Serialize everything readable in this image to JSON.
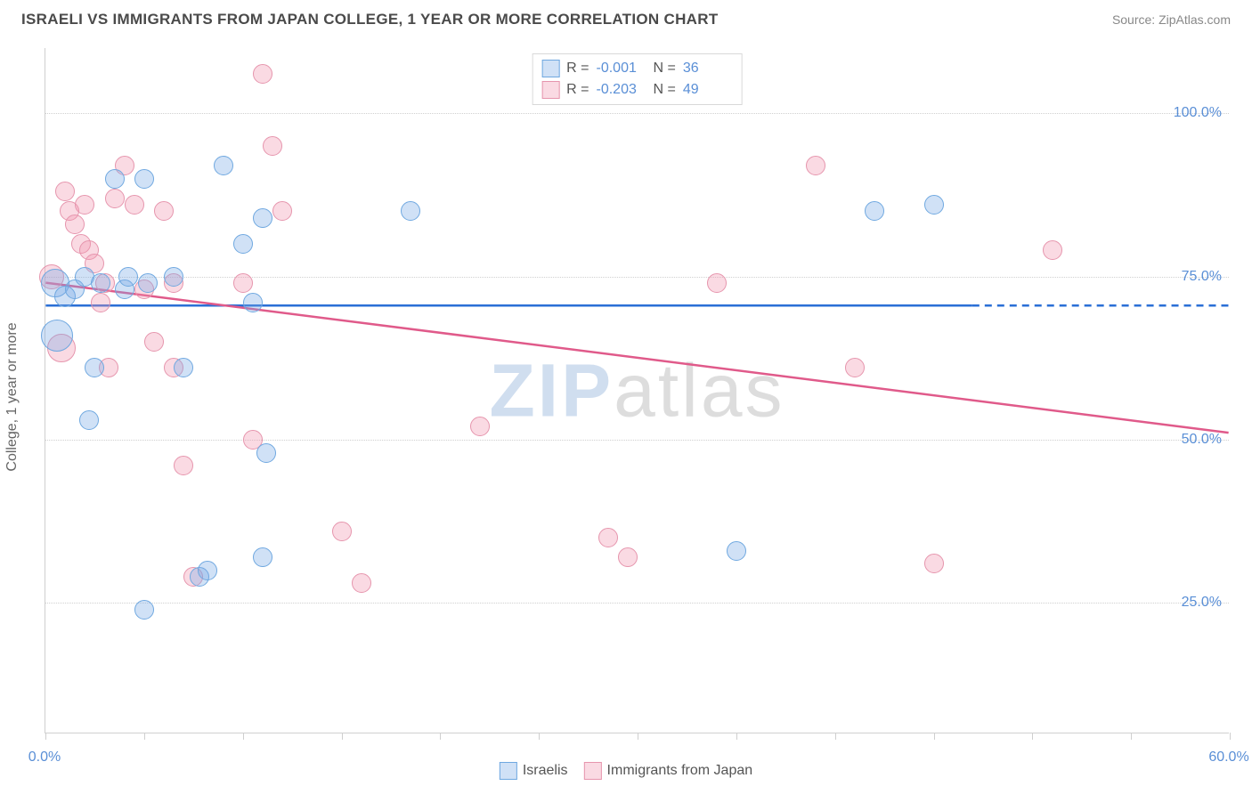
{
  "header": {
    "title": "ISRAELI VS IMMIGRANTS FROM JAPAN COLLEGE, 1 YEAR OR MORE CORRELATION CHART",
    "source": "Source: ZipAtlas.com"
  },
  "chart": {
    "type": "scatter",
    "y_axis_label": "College, 1 year or more",
    "background_color": "#ffffff",
    "grid_color": "#d0d0d0",
    "xlim": [
      0,
      60
    ],
    "ylim": [
      5,
      110
    ],
    "y_ticks": [
      {
        "value": 25,
        "label": "25.0%"
      },
      {
        "value": 50,
        "label": "50.0%"
      },
      {
        "value": 75,
        "label": "75.0%"
      },
      {
        "value": 100,
        "label": "100.0%"
      }
    ],
    "x_ticks": [
      {
        "value": 0,
        "label": "0.0%"
      },
      {
        "value": 5,
        "label": ""
      },
      {
        "value": 10,
        "label": ""
      },
      {
        "value": 15,
        "label": ""
      },
      {
        "value": 20,
        "label": ""
      },
      {
        "value": 25,
        "label": ""
      },
      {
        "value": 30,
        "label": ""
      },
      {
        "value": 35,
        "label": ""
      },
      {
        "value": 40,
        "label": ""
      },
      {
        "value": 45,
        "label": ""
      },
      {
        "value": 50,
        "label": ""
      },
      {
        "value": 55,
        "label": ""
      },
      {
        "value": 60,
        "label": "60.0%"
      }
    ],
    "series": [
      {
        "name": "Israelis",
        "fill_color": "rgba(120,170,230,0.35)",
        "stroke_color": "#6fa8e0",
        "line_color": "#2a6fd6",
        "marker_radius": 11,
        "trend": {
          "x1": 0,
          "y1": 70.5,
          "x2": 47,
          "y2": 70.5,
          "dash_from_x": 47,
          "dash_to_x": 60
        },
        "legend": {
          "R_label": "R =",
          "R_value": "-0.001",
          "N_label": "N =",
          "N_value": "36"
        },
        "points": [
          {
            "x": 0.5,
            "y": 74,
            "r": 16
          },
          {
            "x": 0.6,
            "y": 66,
            "r": 18
          },
          {
            "x": 1.0,
            "y": 72,
            "r": 12
          },
          {
            "x": 1.5,
            "y": 73,
            "r": 11
          },
          {
            "x": 2.0,
            "y": 75,
            "r": 11
          },
          {
            "x": 2.2,
            "y": 53,
            "r": 11
          },
          {
            "x": 2.5,
            "y": 61,
            "r": 11
          },
          {
            "x": 2.8,
            "y": 74,
            "r": 11
          },
          {
            "x": 3.5,
            "y": 90,
            "r": 11
          },
          {
            "x": 4.0,
            "y": 73,
            "r": 11
          },
          {
            "x": 4.2,
            "y": 75,
            "r": 11
          },
          {
            "x": 5.0,
            "y": 90,
            "r": 11
          },
          {
            "x": 5.2,
            "y": 74,
            "r": 11
          },
          {
            "x": 5.0,
            "y": 24,
            "r": 11
          },
          {
            "x": 6.5,
            "y": 75,
            "r": 11
          },
          {
            "x": 7.0,
            "y": 61,
            "r": 11
          },
          {
            "x": 7.8,
            "y": 29,
            "r": 11
          },
          {
            "x": 8.2,
            "y": 30,
            "r": 11
          },
          {
            "x": 9.0,
            "y": 92,
            "r": 11
          },
          {
            "x": 10.0,
            "y": 80,
            "r": 11
          },
          {
            "x": 10.5,
            "y": 71,
            "r": 11
          },
          {
            "x": 11.0,
            "y": 32,
            "r": 11
          },
          {
            "x": 11.0,
            "y": 84,
            "r": 11
          },
          {
            "x": 11.2,
            "y": 48,
            "r": 11
          },
          {
            "x": 18.5,
            "y": 85,
            "r": 11
          },
          {
            "x": 35.0,
            "y": 33,
            "r": 11
          },
          {
            "x": 42.0,
            "y": 85,
            "r": 11
          },
          {
            "x": 45.0,
            "y": 86,
            "r": 11
          }
        ]
      },
      {
        "name": "Immigrants from Japan",
        "fill_color": "rgba(240,150,175,0.35)",
        "stroke_color": "#e695ad",
        "line_color": "#e05a8a",
        "marker_radius": 11,
        "trend": {
          "x1": 0,
          "y1": 74,
          "x2": 60,
          "y2": 51
        },
        "legend": {
          "R_label": "R =",
          "R_value": "-0.203",
          "N_label": "N =",
          "N_value": "49"
        },
        "points": [
          {
            "x": 0.3,
            "y": 75,
            "r": 14
          },
          {
            "x": 0.8,
            "y": 64,
            "r": 16
          },
          {
            "x": 1.0,
            "y": 88,
            "r": 11
          },
          {
            "x": 1.2,
            "y": 85,
            "r": 11
          },
          {
            "x": 1.5,
            "y": 83,
            "r": 11
          },
          {
            "x": 1.8,
            "y": 80,
            "r": 11
          },
          {
            "x": 2.0,
            "y": 86,
            "r": 11
          },
          {
            "x": 2.2,
            "y": 79,
            "r": 11
          },
          {
            "x": 2.5,
            "y": 77,
            "r": 11
          },
          {
            "x": 2.8,
            "y": 71,
            "r": 11
          },
          {
            "x": 3.0,
            "y": 74,
            "r": 11
          },
          {
            "x": 3.2,
            "y": 61,
            "r": 11
          },
          {
            "x": 3.5,
            "y": 87,
            "r": 11
          },
          {
            "x": 4.0,
            "y": 92,
            "r": 11
          },
          {
            "x": 4.5,
            "y": 86,
            "r": 11
          },
          {
            "x": 5.0,
            "y": 73,
            "r": 11
          },
          {
            "x": 5.5,
            "y": 65,
            "r": 11
          },
          {
            "x": 6.0,
            "y": 85,
            "r": 11
          },
          {
            "x": 6.5,
            "y": 74,
            "r": 11
          },
          {
            "x": 6.5,
            "y": 61,
            "r": 11
          },
          {
            "x": 7.0,
            "y": 46,
            "r": 11
          },
          {
            "x": 7.5,
            "y": 29,
            "r": 11
          },
          {
            "x": 10.0,
            "y": 74,
            "r": 11
          },
          {
            "x": 10.5,
            "y": 50,
            "r": 11
          },
          {
            "x": 11.0,
            "y": 106,
            "r": 11
          },
          {
            "x": 11.5,
            "y": 95,
            "r": 11
          },
          {
            "x": 12.0,
            "y": 85,
            "r": 11
          },
          {
            "x": 15.0,
            "y": 36,
            "r": 11
          },
          {
            "x": 16.0,
            "y": 28,
            "r": 11
          },
          {
            "x": 22.0,
            "y": 52,
            "r": 11
          },
          {
            "x": 28.5,
            "y": 35,
            "r": 11
          },
          {
            "x": 29.5,
            "y": 32,
            "r": 11
          },
          {
            "x": 34.0,
            "y": 74,
            "r": 11
          },
          {
            "x": 39.0,
            "y": 92,
            "r": 11
          },
          {
            "x": 41.0,
            "y": 61,
            "r": 11
          },
          {
            "x": 45.0,
            "y": 31,
            "r": 11
          },
          {
            "x": 51.0,
            "y": 79,
            "r": 11
          }
        ]
      }
    ]
  },
  "legend_bottom": {
    "items": [
      "Israelis",
      "Immigrants from Japan"
    ]
  },
  "watermark": {
    "part1": "ZIP",
    "part2": "atlas"
  }
}
